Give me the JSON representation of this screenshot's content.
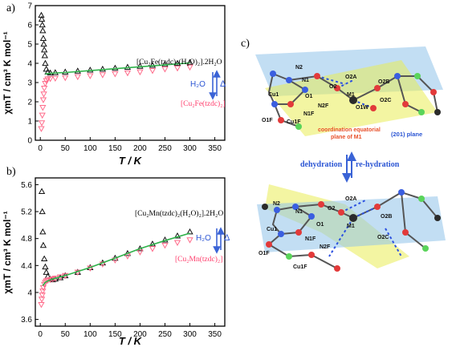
{
  "panel_labels": {
    "a": "a)",
    "b": "b)",
    "c": "c)"
  },
  "arrow_labels": {
    "h2o": "H₂O",
    "delta": "Δ"
  },
  "chart_data": [
    {
      "panel": "a",
      "type": "scatter",
      "xlabel": "T / K",
      "ylabel": "χmT / cm³ K mol⁻¹",
      "xlim": [
        -10,
        370
      ],
      "ylim": [
        0,
        7
      ],
      "x_ticks": [
        0,
        50,
        100,
        150,
        200,
        250,
        300,
        350
      ],
      "y_ticks": [
        0,
        1,
        2,
        3,
        4,
        5,
        6,
        7
      ],
      "grid": false,
      "series": [
        {
          "name": "[Cu₂Fe(tzdc)₂(H₂O)₂].2H₂O",
          "marker": "triangle-up",
          "color": "#111111",
          "x": [
            2,
            3,
            4,
            5,
            6,
            7,
            8,
            9,
            10,
            12,
            15,
            20,
            30,
            50,
            75,
            100,
            125,
            150,
            175,
            200,
            225,
            250,
            275,
            300
          ],
          "y": [
            6.5,
            6.3,
            6.0,
            5.7,
            5.3,
            5.0,
            4.7,
            4.4,
            4.0,
            3.7,
            3.55,
            3.5,
            3.52,
            3.55,
            3.6,
            3.65,
            3.7,
            3.75,
            3.8,
            3.85,
            3.9,
            3.95,
            4.0,
            4.05
          ]
        },
        {
          "name": "[Cu₂Fe(tzdc)₂]",
          "marker": "triangle-down",
          "color": "#ff6b8a",
          "x": [
            2,
            3,
            4,
            5,
            6,
            7,
            8,
            10,
            12,
            15,
            20,
            30,
            50,
            75,
            100,
            125,
            150,
            175,
            200,
            225,
            250,
            275,
            300
          ],
          "y": [
            0.6,
            0.9,
            1.3,
            1.7,
            2.1,
            2.4,
            2.7,
            2.95,
            3.1,
            3.18,
            3.2,
            3.22,
            3.25,
            3.3,
            3.35,
            3.4,
            3.45,
            3.5,
            3.55,
            3.62,
            3.7,
            3.75,
            3.8
          ]
        },
        {
          "name": "fit-a",
          "marker": "line",
          "color": "#2fb24a",
          "x": [
            10,
            30,
            50,
            100,
            150,
            200,
            250,
            300
          ],
          "y": [
            3.45,
            3.5,
            3.52,
            3.62,
            3.72,
            3.82,
            3.92,
            4.02
          ]
        }
      ],
      "legend_texts": [
        "[Cu₂Fe(tzdc)₂(H₂O)₂].2H₂O",
        "[Cu₂Fe(tzdc)₂]"
      ]
    },
    {
      "panel": "b",
      "type": "scatter",
      "xlabel": "T / K",
      "ylabel": "χmT / cm³ K mol⁻¹",
      "xlim": [
        -10,
        370
      ],
      "ylim": [
        3.5,
        5.7
      ],
      "x_ticks": [
        0,
        50,
        100,
        150,
        200,
        250,
        300,
        350
      ],
      "y_ticks": [
        3.6,
        4.0,
        4.4,
        4.8,
        5.2,
        5.6
      ],
      "grid": false,
      "series": [
        {
          "name": "[Cu₂Mn(tzdc)₂(H₂O)₂].2H₂O",
          "marker": "triangle-up",
          "color": "#111111",
          "x": [
            3,
            4,
            5,
            6,
            8,
            10,
            12,
            15,
            20,
            25,
            30,
            40,
            50,
            75,
            100,
            125,
            150,
            175,
            200,
            225,
            250,
            275,
            300
          ],
          "y": [
            5.5,
            5.2,
            4.9,
            4.7,
            4.5,
            4.38,
            4.3,
            4.24,
            4.2,
            4.19,
            4.2,
            4.22,
            4.25,
            4.3,
            4.37,
            4.44,
            4.51,
            4.58,
            4.65,
            4.72,
            4.78,
            4.84,
            4.9
          ]
        },
        {
          "name": "[Cu₂Mn(tzdc)₂]",
          "marker": "triangle-down",
          "color": "#ff6b8a",
          "x": [
            2,
            3,
            4,
            5,
            6,
            8,
            10,
            12,
            15,
            20,
            25,
            30,
            40,
            50,
            75,
            100,
            125,
            150,
            175,
            200,
            225,
            250,
            275,
            300
          ],
          "y": [
            3.82,
            3.9,
            3.96,
            4.02,
            4.07,
            4.12,
            4.15,
            4.17,
            4.18,
            4.19,
            4.2,
            4.21,
            4.23,
            4.25,
            4.3,
            4.36,
            4.42,
            4.48,
            4.54,
            4.6,
            4.65,
            4.7,
            4.74,
            4.78
          ]
        },
        {
          "name": "fit-b",
          "marker": "line",
          "color": "#2fb24a",
          "x": [
            5,
            10,
            20,
            30,
            50,
            100,
            150,
            200,
            250,
            300
          ],
          "y": [
            4.1,
            4.15,
            4.19,
            4.21,
            4.25,
            4.37,
            4.51,
            4.65,
            4.77,
            4.88
          ]
        }
      ],
      "legend_texts": [
        "[Cu₂Mn(tzdc)₂(H₂O)₂].2H₂O",
        "[Cu₂Mn(tzdc)₂]"
      ]
    }
  ],
  "structure": {
    "labels_top": [
      "N2",
      "N1",
      "Cu1",
      "O1",
      "N1F",
      "N2F",
      "O1F",
      "Cu1F",
      "O2",
      "O2A",
      "M1",
      "O1W",
      "O2C",
      "O2B"
    ],
    "labels_bottom": [
      "N2",
      "N1",
      "Cu1",
      "O1F",
      "N1F",
      "N2F",
      "Cu1F",
      "O1",
      "O2",
      "O2A",
      "M1",
      "O2C",
      "O2B"
    ],
    "annotation_plane": "coordination equatorial plane of M1",
    "annotation_201": "(201) plane",
    "dehydration": "dehydration",
    "rehydration": "re-hydration"
  }
}
